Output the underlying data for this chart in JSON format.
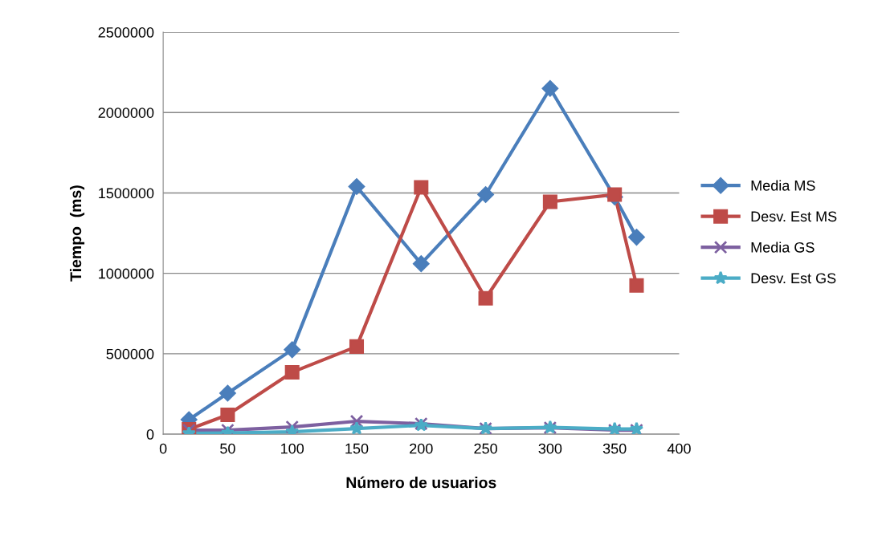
{
  "chart_data": {
    "type": "line",
    "xlabel": "Número de usuarios",
    "ylabel": "Tiempo  (ms)",
    "xlim": [
      0,
      400
    ],
    "xticks": [
      0,
      50,
      100,
      150,
      200,
      250,
      300,
      350,
      400
    ],
    "ylim": [
      0,
      2500000
    ],
    "yticks": [
      0,
      500000,
      1000000,
      1500000,
      2000000,
      2500000
    ],
    "grid": "y",
    "legend": "right",
    "line_style": "solid",
    "series": [
      {
        "name": "Media MS",
        "color": "#4a7ebb",
        "marker": "diamond",
        "x": [
          20,
          50,
          100,
          150,
          200,
          250,
          300,
          350,
          367
        ],
        "values": [
          90000,
          255000,
          525000,
          1540000,
          1060000,
          1490000,
          2150000,
          1475000,
          1225000
        ]
      },
      {
        "name": "Desv. Est MS",
        "color": "#be4b48",
        "marker": "square",
        "x": [
          20,
          50,
          100,
          150,
          200,
          250,
          300,
          350,
          367
        ],
        "values": [
          30000,
          120000,
          385000,
          545000,
          1535000,
          845000,
          1445000,
          1490000,
          925000
        ]
      },
      {
        "name": "Media GS",
        "color": "#7d60a0",
        "marker": "cross",
        "x": [
          20,
          50,
          100,
          150,
          200,
          250,
          300,
          350,
          367
        ],
        "values": [
          25000,
          25000,
          45000,
          80000,
          65000,
          35000,
          40000,
          25000,
          25000
        ]
      },
      {
        "name": "Desv. Est GS",
        "color": "#4bacc6",
        "marker": "star",
        "x": [
          20,
          50,
          100,
          150,
          200,
          250,
          300,
          350,
          367
        ],
        "values": [
          5000,
          8000,
          15000,
          35000,
          55000,
          35000,
          42000,
          32000,
          32000
        ]
      }
    ]
  }
}
